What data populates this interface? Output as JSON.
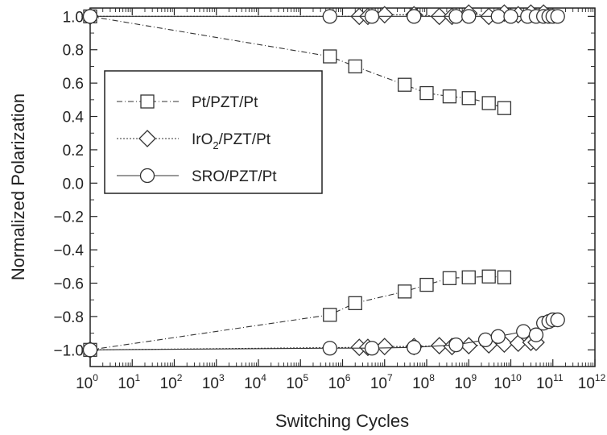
{
  "chart_data": {
    "type": "scatter",
    "xlabel": "Switching Cycles",
    "ylabel": "Normalized Polarization",
    "xscale": "log",
    "xlim": [
      1,
      1000000000000.0
    ],
    "ylim": [
      -1.1,
      1.05
    ],
    "grid": false,
    "legend_placement": "left-middle",
    "x_ticks": [
      {
        "base": "10",
        "exp": "0",
        "value": 1
      },
      {
        "base": "10",
        "exp": "1",
        "value": 10.0
      },
      {
        "base": "10",
        "exp": "2",
        "value": 100.0
      },
      {
        "base": "10",
        "exp": "3",
        "value": 1000.0
      },
      {
        "base": "10",
        "exp": "4",
        "value": 10000.0
      },
      {
        "base": "10",
        "exp": "5",
        "value": 100000.0
      },
      {
        "base": "10",
        "exp": "6",
        "value": 1000000.0
      },
      {
        "base": "10",
        "exp": "7",
        "value": 10000000.0
      },
      {
        "base": "10",
        "exp": "8",
        "value": 100000000.0
      },
      {
        "base": "10",
        "exp": "9",
        "value": 1000000000.0
      },
      {
        "base": "10",
        "exp": "10",
        "value": 10000000000.0
      },
      {
        "base": "10",
        "exp": "11",
        "value": 100000000000.0
      },
      {
        "base": "10",
        "exp": "12",
        "value": 1000000000000.0
      }
    ],
    "y_ticks": [
      {
        "label": "1.0",
        "value": 1.0
      },
      {
        "label": "0.8",
        "value": 0.8
      },
      {
        "label": "0.6",
        "value": 0.6
      },
      {
        "label": "0.4",
        "value": 0.4
      },
      {
        "label": "0.2",
        "value": 0.2
      },
      {
        "label": "0.0",
        "value": 0.0
      },
      {
        "label": "−0.2",
        "value": -0.2
      },
      {
        "label": "−0.4",
        "value": -0.4
      },
      {
        "label": "−0.6",
        "value": -0.6
      },
      {
        "label": "−0.8",
        "value": -0.8
      },
      {
        "label": "−1.0",
        "value": -1.0
      }
    ],
    "series": [
      {
        "name": "Pt/PZT/Pt",
        "label_parts": [
          {
            "t": "Pt/PZT/Pt"
          }
        ],
        "marker": "square",
        "line": "dashdot",
        "branches": [
          {
            "x": [
              1,
              500000.0,
              2000000.0,
              30000000.0,
              100000000.0,
              350000000.0,
              1000000000.0,
              3000000000.0,
              7000000000.0
            ],
            "y": [
              1.0,
              0.76,
              0.7,
              0.59,
              0.54,
              0.52,
              0.51,
              0.48,
              0.45
            ]
          },
          {
            "x": [
              1,
              500000.0,
              2000000.0,
              30000000.0,
              100000000.0,
              350000000.0,
              1000000000.0,
              3000000000.0,
              7000000000.0
            ],
            "y": [
              -1.0,
              -0.79,
              -0.72,
              -0.65,
              -0.61,
              -0.57,
              -0.565,
              -0.56,
              -0.565
            ]
          }
        ]
      },
      {
        "name": "IrO2/PZT/Pt",
        "label_parts": [
          {
            "t": "IrO"
          },
          {
            "t": "2",
            "sub": true
          },
          {
            "t": "/PZT/Pt"
          }
        ],
        "marker": "diamond",
        "line": "dotted",
        "branches": [
          {
            "x": [
              1,
              2500000.0,
              4000000.0,
              10000000.0,
              50000000.0,
              200000000.0,
              400000000.0,
              1000000000.0,
              3000000000.0,
              7000000000.0,
              15000000000.0,
              30000000000.0,
              60000000000.0
            ],
            "y": [
              1.0,
              1.0,
              1.0,
              1.01,
              1.01,
              1.0,
              1.0,
              1.02,
              1.0,
              1.02,
              1.01,
              1.02,
              1.02
            ]
          },
          {
            "x": [
              1,
              2500000.0,
              4000000.0,
              10000000.0,
              50000000.0,
              200000000.0,
              400000000.0,
              1000000000.0,
              3000000000.0,
              7000000000.0,
              15000000000.0,
              30000000000.0,
              40000000000.0
            ],
            "y": [
              -1.0,
              -0.985,
              -0.985,
              -0.98,
              -0.98,
              -0.975,
              -0.98,
              -0.975,
              -0.97,
              -0.965,
              -0.96,
              -0.955,
              -0.955
            ]
          }
        ]
      },
      {
        "name": "SRO/PZT/Pt",
        "label_parts": [
          {
            "t": "SRO/PZT/Pt"
          }
        ],
        "marker": "circle",
        "line": "solid",
        "branches": [
          {
            "x": [
              1,
              500000.0,
              5000000.0,
              50000000.0,
              500000000.0,
              1000000000.0,
              5000000000.0,
              10000000000.0,
              25000000000.0,
              40000000000.0,
              60000000000.0,
              80000000000.0,
              100000000000.0,
              130000000000.0
            ],
            "y": [
              1.0,
              1.0,
              1.0,
              1.0,
              1.0,
              1.0,
              1.0,
              1.0,
              1.0,
              1.0,
              1.0,
              1.0,
              1.0,
              1.0
            ]
          },
          {
            "x": [
              1,
              500000.0,
              5000000.0,
              50000000.0,
              500000000.0,
              2500000000.0,
              5000000000.0,
              20000000000.0,
              40000000000.0,
              60000000000.0,
              80000000000.0,
              100000000000.0,
              130000000000.0
            ],
            "y": [
              -1.0,
              -0.99,
              -0.99,
              -0.985,
              -0.97,
              -0.94,
              -0.92,
              -0.89,
              -0.91,
              -0.84,
              -0.83,
              -0.82,
              -0.82
            ]
          }
        ]
      }
    ]
  }
}
